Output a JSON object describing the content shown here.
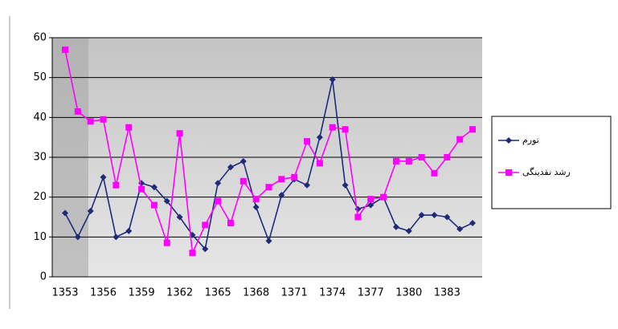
{
  "chart_data": {
    "type": "line",
    "categories": [
      "1353",
      null,
      null,
      "1356",
      null,
      null,
      "1359",
      null,
      null,
      "1362",
      null,
      null,
      "1365",
      null,
      null,
      "1368",
      null,
      null,
      "1371",
      null,
      null,
      "1374",
      null,
      null,
      "1377",
      null,
      null,
      "1380",
      null,
      null,
      "1383",
      null,
      null
    ],
    "series": [
      {
        "name": "تورم",
        "color": "#1f2a7a",
        "marker": "diamond",
        "values": [
          16,
          10,
          16.5,
          25,
          10,
          11.5,
          23.5,
          22.5,
          19,
          15,
          10.5,
          7,
          23.5,
          27.5,
          29,
          17.5,
          9,
          20.5,
          24.5,
          23,
          35,
          49.5,
          23,
          17,
          18,
          20,
          12.5,
          11.5,
          15.5,
          15.5,
          15,
          12,
          13.5
        ]
      },
      {
        "name": "رشد نقدینگی",
        "color": "#ff00ff",
        "marker": "square",
        "values": [
          57,
          41.5,
          39,
          39.5,
          23,
          37.5,
          22,
          18,
          8.5,
          36,
          6,
          13,
          19,
          13.5,
          24,
          19.5,
          22.5,
          24.5,
          25,
          34,
          28.5,
          37.5,
          37,
          15,
          19.5,
          20,
          29,
          29,
          30,
          26,
          30,
          34.5,
          37
        ]
      }
    ],
    "ylim": [
      0,
      60
    ],
    "yticks": [
      0,
      10,
      20,
      30,
      40,
      50,
      60
    ],
    "grid": true,
    "legend": "right"
  }
}
